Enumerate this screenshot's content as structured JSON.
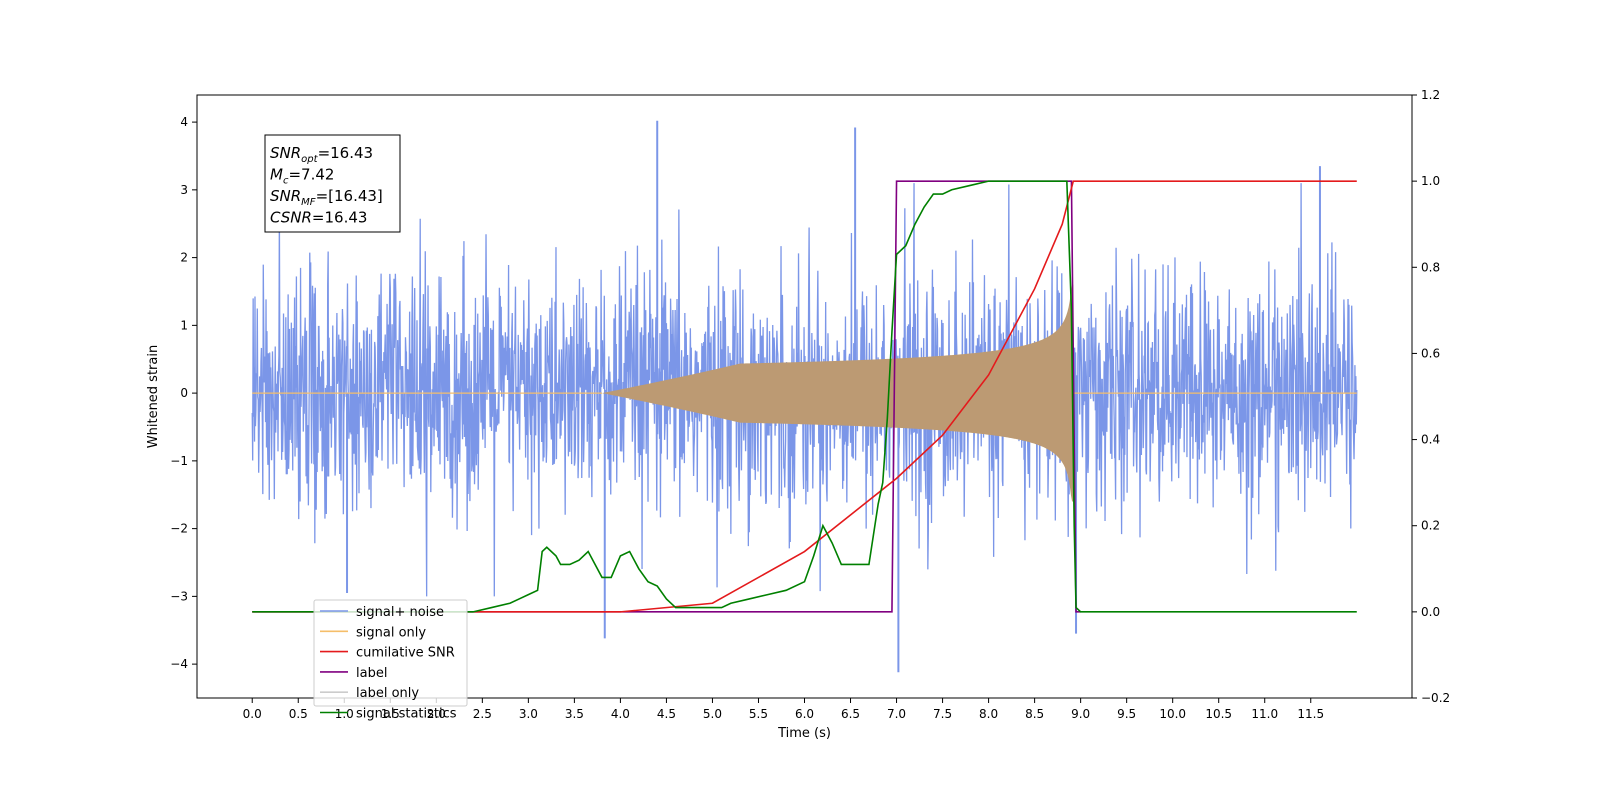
{
  "chart_data": {
    "type": "line",
    "xlabel": "Time (s)",
    "ylabel": "Whitened strain",
    "xlim": [
      -0.6,
      12.6
    ],
    "ylim": [
      -4.5,
      4.4
    ],
    "y2lim": [
      -0.2,
      1.2
    ],
    "x_ticks": [
      0.0,
      0.5,
      1.0,
      1.5,
      2.0,
      2.5,
      3.0,
      3.5,
      4.0,
      4.5,
      5.0,
      5.5,
      6.0,
      6.5,
      7.0,
      7.5,
      8.0,
      8.5,
      9.0,
      9.5,
      10.0,
      10.5,
      11.0,
      11.5
    ],
    "x_tick_labels": [
      "0.0",
      "0.5",
      "1.0",
      "1.5",
      "2.0",
      "2.5",
      "3.0",
      "3.5",
      "4.0",
      "4.5",
      "5.0",
      "5.5",
      "6.0",
      "6.5",
      "7.0",
      "7.5",
      "8.0",
      "8.5",
      "9.0",
      "9.5",
      "10.0",
      "10.5",
      "11.0",
      "11.5"
    ],
    "y_ticks": [
      -4,
      -3,
      -2,
      -1,
      0,
      1,
      2,
      3,
      4
    ],
    "y_tick_labels": [
      "−4",
      "−3",
      "−2",
      "−1",
      "0",
      "1",
      "2",
      "3",
      "4"
    ],
    "y2_ticks": [
      -0.2,
      0.0,
      0.2,
      0.4,
      0.6,
      0.8,
      1.0,
      1.2
    ],
    "y2_tick_labels": [
      "−0.2",
      "0.0",
      "0.2",
      "0.4",
      "0.6",
      "0.8",
      "1.0",
      "1.2"
    ],
    "grid": false,
    "legend_position": "lower-left",
    "annotation": [
      {
        "main": "SNR",
        "sub": "opt",
        "rest": "=16.43"
      },
      {
        "main": "M",
        "sub": "c",
        "rest": "=7.42"
      },
      {
        "main": "SNR",
        "sub": "MF",
        "rest": "=[16.43]"
      },
      {
        "main": "CSNR",
        "sub": "",
        "rest": "=16.43"
      }
    ],
    "series": [
      {
        "name": "signal+ noise",
        "axis": "left",
        "color": "#7b96e8",
        "duration": [
          0.0,
          12.0
        ],
        "typical_amplitude": 1.8,
        "peaks": [
          [
            4.4,
            4.02
          ],
          [
            6.55,
            3.92
          ],
          [
            11.6,
            3.35
          ],
          [
            7.02,
            -4.12
          ],
          [
            3.83,
            -3.62
          ],
          [
            8.95,
            -3.55
          ],
          [
            1.03,
            -2.95
          ]
        ]
      },
      {
        "name": "signal only",
        "axis": "left",
        "color": "#f5be6a",
        "chirp_start": 4.3,
        "merger_time": 8.92,
        "peak_amplitude": 1.6
      },
      {
        "name": "cumilative SNR",
        "axis": "right",
        "color": "#e41a1c",
        "x": [
          0.0,
          4.0,
          5.0,
          6.0,
          7.0,
          7.5,
          8.0,
          8.5,
          8.8,
          8.92,
          9.0,
          12.0
        ],
        "y": [
          0.0,
          0.0,
          0.02,
          0.14,
          0.31,
          0.41,
          0.55,
          0.75,
          0.9,
          1.0,
          1.0,
          1.0
        ]
      },
      {
        "name": "label",
        "axis": "right",
        "color": "#800080",
        "x": [
          0.0,
          6.95,
          7.0,
          8.9,
          8.95,
          9.0
        ],
        "y": [
          0.0,
          0.0,
          1.0,
          1.0,
          0.0,
          0.0
        ]
      },
      {
        "name": "label only",
        "axis": "right",
        "color": "#cccccc",
        "x": [],
        "y": []
      },
      {
        "name": "signal statistics",
        "axis": "right",
        "color": "#008000",
        "x": [
          0.0,
          2.0,
          2.4,
          2.6,
          2.8,
          2.9,
          3.0,
          3.1,
          3.15,
          3.2,
          3.3,
          3.35,
          3.45,
          3.55,
          3.65,
          3.8,
          3.9,
          4.0,
          4.1,
          4.2,
          4.3,
          4.4,
          4.5,
          4.6,
          4.7,
          4.8,
          5.0,
          5.1,
          5.2,
          5.4,
          5.6,
          5.8,
          6.0,
          6.1,
          6.2,
          6.3,
          6.4,
          6.5,
          6.7,
          6.8,
          6.85,
          6.9,
          6.95,
          7.0,
          7.1,
          7.2,
          7.3,
          7.4,
          7.5,
          7.6,
          7.8,
          8.0,
          8.5,
          8.85,
          8.9,
          8.93,
          8.95,
          9.0,
          12.0
        ],
        "y": [
          0.0,
          0.0,
          0.0,
          0.01,
          0.02,
          0.03,
          0.04,
          0.05,
          0.14,
          0.15,
          0.13,
          0.11,
          0.11,
          0.12,
          0.14,
          0.08,
          0.08,
          0.13,
          0.14,
          0.1,
          0.07,
          0.06,
          0.03,
          0.01,
          0.01,
          0.01,
          0.01,
          0.01,
          0.02,
          0.03,
          0.04,
          0.05,
          0.07,
          0.13,
          0.2,
          0.16,
          0.11,
          0.11,
          0.11,
          0.25,
          0.3,
          0.45,
          0.65,
          0.83,
          0.85,
          0.9,
          0.94,
          0.97,
          0.97,
          0.98,
          0.99,
          1.0,
          1.0,
          1.0,
          0.7,
          0.2,
          0.01,
          0.0,
          0.0
        ]
      }
    ]
  }
}
